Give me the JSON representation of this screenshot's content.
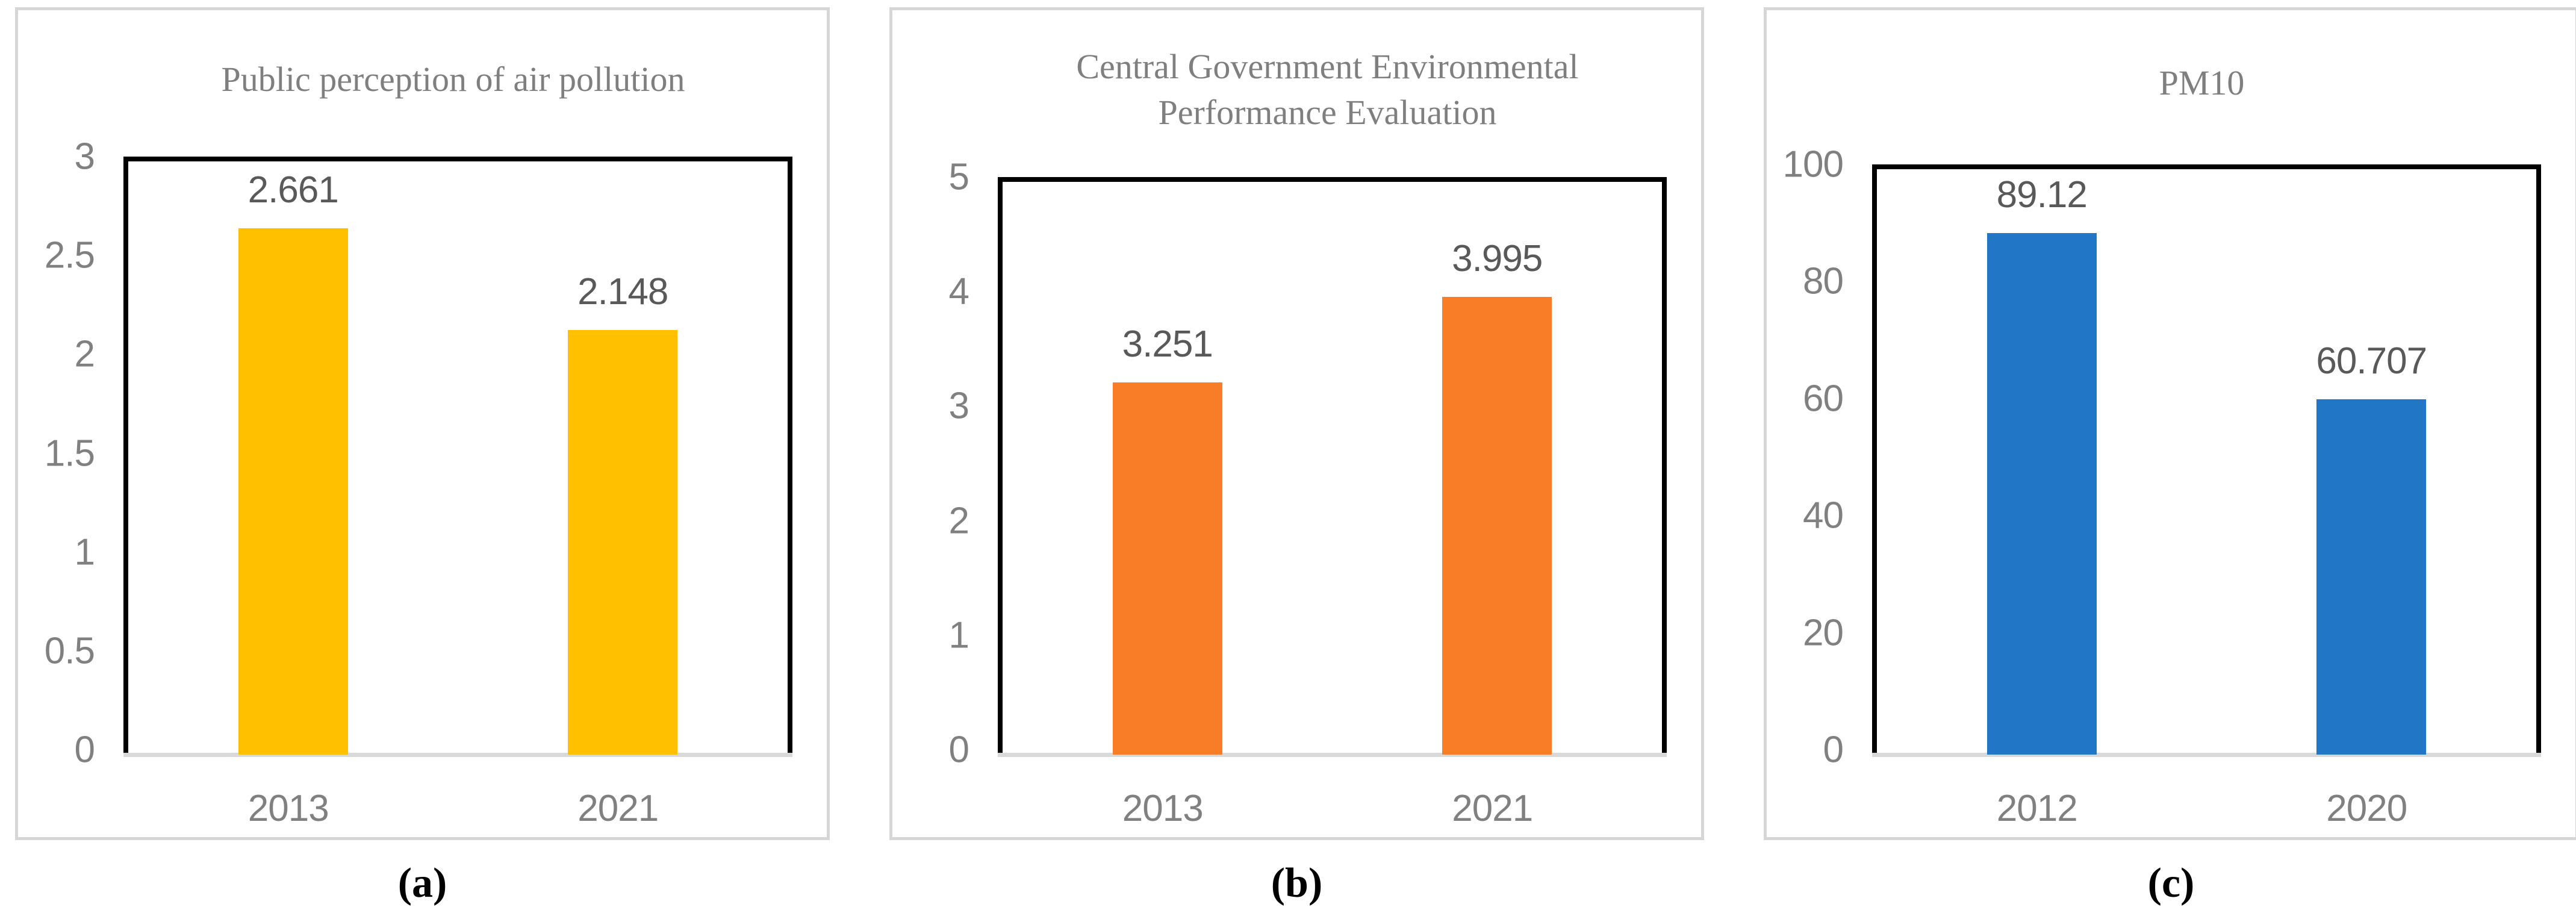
{
  "chart_data": [
    {
      "type": "bar",
      "title": "Public perception of air pollution",
      "caption": "(a)",
      "categories": [
        "2013",
        "2021"
      ],
      "values": [
        2.661,
        2.148
      ],
      "value_labels": [
        "2.661",
        "2.148"
      ],
      "xlabel": "",
      "ylabel": "",
      "ylim": [
        0,
        3
      ],
      "yticks": [
        "3",
        "2.5",
        "2",
        "1.5",
        "1",
        "0.5",
        "0"
      ],
      "grid": "off",
      "legend": "none",
      "bar_color": "#FFC000"
    },
    {
      "type": "bar",
      "title": "Central Government Environmental Performance Evaluation",
      "caption": "(b)",
      "categories": [
        "2013",
        "2021"
      ],
      "values": [
        3.251,
        3.995
      ],
      "value_labels": [
        "3.251",
        "3.995"
      ],
      "xlabel": "",
      "ylabel": "",
      "ylim": [
        0,
        5
      ],
      "yticks": [
        "5",
        "4",
        "3",
        "2",
        "1",
        "0"
      ],
      "grid": "off",
      "legend": "none",
      "bar_color": "#F97C27"
    },
    {
      "type": "bar",
      "title": "PM10",
      "caption": "(c)",
      "categories": [
        "2012",
        "2020"
      ],
      "values": [
        89.12,
        60.707
      ],
      "value_labels": [
        "89.12",
        "60.707"
      ],
      "xlabel": "",
      "ylabel": "",
      "ylim": [
        0,
        100
      ],
      "yticks": [
        "100",
        "80",
        "60",
        "40",
        "20",
        "0"
      ],
      "grid": "off",
      "legend": "none",
      "bar_color": "#2176C6"
    }
  ],
  "styles": {
    "panel_border_color": "#D6D6D6",
    "plot_border_color": "#000000",
    "baseline_color": "#D9D9D9",
    "title_color": "#7F7F7F",
    "tick_label_color": "#808080",
    "value_label_color": "#595959"
  }
}
